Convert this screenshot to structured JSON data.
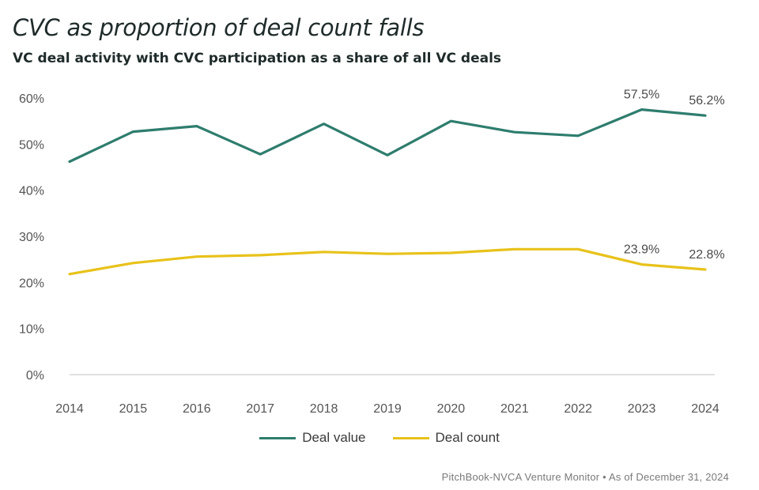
{
  "title": "CVC as proportion of deal count falls",
  "subtitle": "VC deal activity with CVC participation as a share of all VC deals",
  "source": "PitchBook-NVCA Venture Monitor • As of December 31, 2024",
  "chart_data": {
    "type": "line",
    "title": "CVC as proportion of deal count falls",
    "subtitle": "VC deal activity with CVC participation as a share of all VC deals",
    "x": [
      "2014",
      "2015",
      "2016",
      "2017",
      "2018",
      "2019",
      "2020",
      "2021",
      "2022",
      "2023",
      "2024"
    ],
    "yticks": [
      0,
      10,
      20,
      30,
      40,
      50,
      60
    ],
    "ytick_labels": [
      "0%",
      "10%",
      "20%",
      "30%",
      "40%",
      "50%",
      "60%"
    ],
    "ylim": [
      0,
      60
    ],
    "xlabel": "",
    "ylabel": "",
    "grid": false,
    "legend_position": "bottom-center",
    "series": [
      {
        "name": "Deal value",
        "color": "#2e7d6e",
        "values": [
          46.2,
          52.7,
          53.9,
          47.8,
          54.4,
          47.6,
          55.0,
          52.6,
          51.8,
          57.5,
          56.2
        ],
        "labels": [
          null,
          null,
          null,
          null,
          null,
          null,
          null,
          null,
          null,
          "57.5%",
          "56.2%"
        ]
      },
      {
        "name": "Deal count",
        "color": "#e8c21a",
        "values": [
          21.8,
          24.2,
          25.6,
          25.9,
          26.6,
          26.2,
          26.4,
          27.2,
          27.2,
          23.9,
          22.8
        ],
        "labels": [
          null,
          null,
          null,
          null,
          null,
          null,
          null,
          null,
          null,
          "23.9%",
          "22.8%"
        ]
      }
    ]
  }
}
